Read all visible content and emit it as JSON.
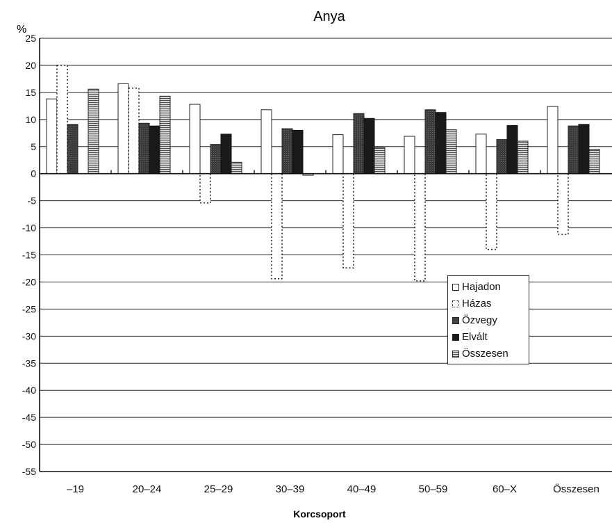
{
  "chart_data": {
    "type": "bar",
    "title": "Anya",
    "ylabel": "%",
    "xlabel": "Korcsoport",
    "ylim": [
      -55,
      25
    ],
    "yticks": [
      25,
      20,
      15,
      10,
      5,
      0,
      -5,
      -10,
      -15,
      -20,
      -25,
      -30,
      -35,
      -40,
      -45,
      -50,
      -55
    ],
    "grid": true,
    "legend_position": "right, lower-middle",
    "categories": [
      "–19",
      "20–24",
      "25–29",
      "30–39",
      "40–49",
      "50–59",
      "60–X",
      "Összesen"
    ],
    "series": [
      {
        "name": "Hajadon",
        "values": [
          13.8,
          16.6,
          12.8,
          11.8,
          7.2,
          6.9,
          7.3,
          12.4
        ]
      },
      {
        "name": "Házas",
        "values": [
          20.0,
          15.8,
          -5.4,
          -19.4,
          -17.4,
          -19.8,
          -14.0,
          -11.2
        ]
      },
      {
        "name": "Özvegy",
        "values": [
          9.1,
          9.3,
          5.4,
          8.3,
          11.1,
          11.8,
          6.3,
          8.8
        ]
      },
      {
        "name": "Elvált",
        "values": [
          0,
          8.8,
          7.3,
          8.0,
          10.2,
          11.3,
          8.9,
          9.1
        ]
      },
      {
        "name": "Összesen",
        "values": [
          15.6,
          14.3,
          2.1,
          -0.3,
          4.8,
          8.1,
          6.0,
          4.5
        ]
      }
    ]
  },
  "colors": {
    "Hajadon": "#ffffff",
    "Házas": "#ffffff",
    "Özvegy": "#3f3f3f",
    "Elvált": "#1a1a1a",
    "Összesen": "#bdbdbd",
    "axis": "#111111",
    "grid": "#222222"
  }
}
